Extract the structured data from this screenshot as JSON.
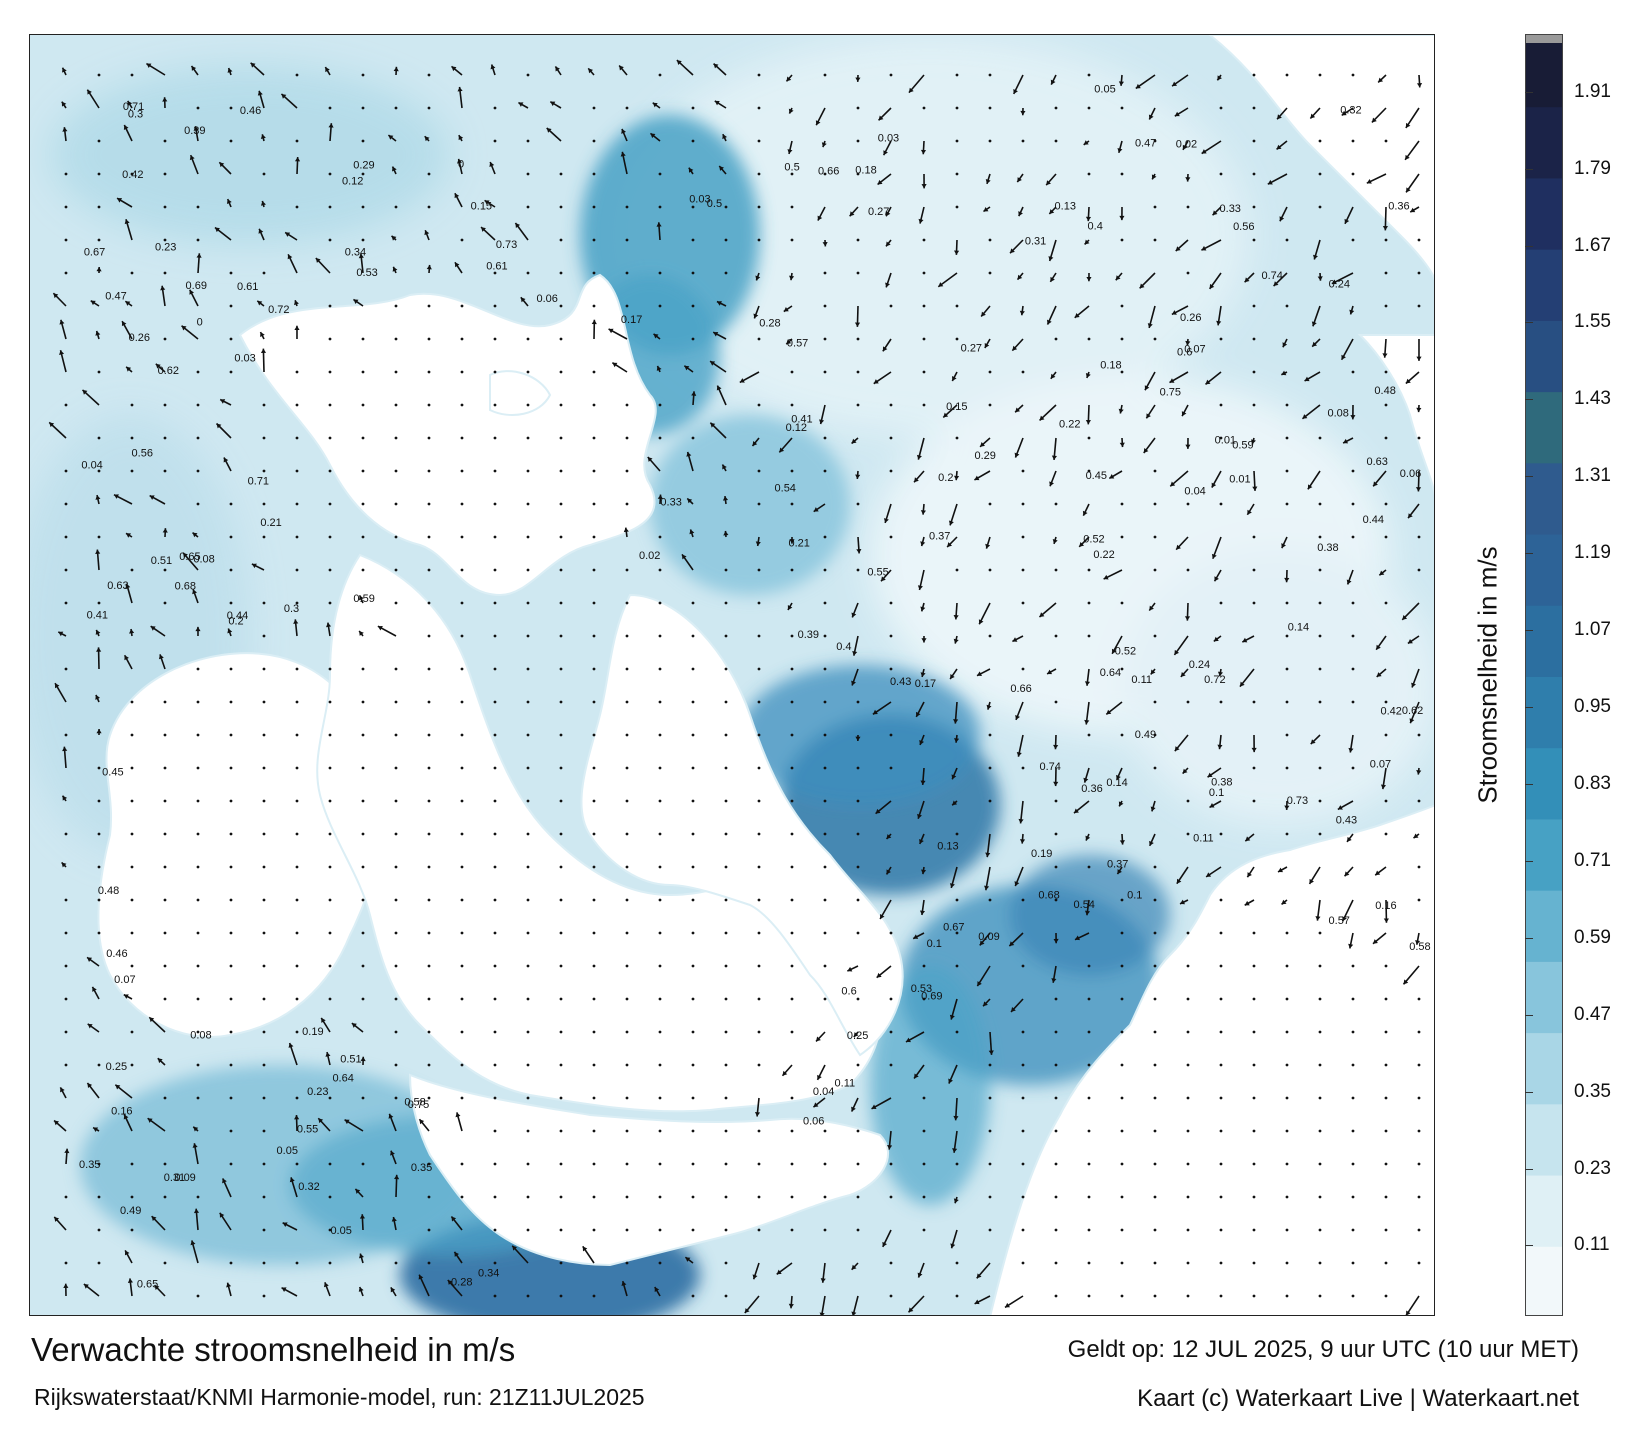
{
  "map": {
    "title": "Verwachte stroomsnelheid in m/s",
    "subtitle": "Rijkswaterstaat/KNMI Harmonie-model, run: 21Z11JUL2025",
    "valid_time": "Geldt op: 12 JUL 2025, 9 uur UTC (10 uur MET)",
    "credit": "Kaart (c) Waterkaart Live | Waterkaart.net",
    "land_color": "#ffffff",
    "arrow_color": "#111111"
  },
  "legend": {
    "title": "Stroomsnelheid in m/s",
    "unit": "m/s",
    "ticks": [
      "1.91",
      "1.79",
      "1.67",
      "1.55",
      "1.43",
      "1.31",
      "1.19",
      "1.07",
      "0.95",
      "0.83",
      "0.71",
      "0.59",
      "0.47",
      "0.35",
      "0.23",
      "0.11"
    ],
    "range": [
      0,
      2.0
    ],
    "colors": [
      "#f2f8fa",
      "#dff0f5",
      "#c6e4ee",
      "#a9d6e6",
      "#88c5dc",
      "#66b3d0",
      "#47a1c4",
      "#338fb8",
      "#2f7eac",
      "#2c6fa0",
      "#2d6397",
      "#2f5b8e",
      "#2f6a7c",
      "#284f82",
      "#243f74",
      "#1f2f60",
      "#1b2348",
      "#181c36"
    ]
  },
  "current_labels": [
    "0.11",
    "0.08",
    "0.07",
    "0.1",
    "0.04",
    "0.05",
    "0.06",
    "0.03",
    "0.02",
    "0.15",
    "0.13",
    "0.09",
    "0.12",
    "0.16",
    "0.18",
    "0.2",
    "0.22",
    "0.25",
    "0.3",
    "0.35",
    "0.4",
    "0.45",
    "0.5",
    "0.57",
    "0.6",
    "0.66",
    "0.72",
    "0.74",
    "0.69",
    "0.64",
    "0.54",
    "0.47",
    "0.41",
    "0.38",
    "0.33",
    "0.28",
    "0.24",
    "0.21",
    "0.17",
    "0.14",
    "0.01",
    "0",
    "0.19",
    "0.23",
    "0.26",
    "0.29",
    "0.31",
    "0.36",
    "0.43",
    "0.49",
    "0.52",
    "0.55",
    "0.61",
    "0.65",
    "0.67",
    "0.73",
    "0.75",
    "0.59",
    "0.42",
    "0.34",
    "0.27",
    "0.32",
    "0.37",
    "0.44",
    "0.46",
    "0.53",
    "0.58",
    "0.62",
    "0.56",
    "0.48",
    "0.39",
    "0.71",
    "0.68",
    "0.63",
    "0.51"
  ]
}
